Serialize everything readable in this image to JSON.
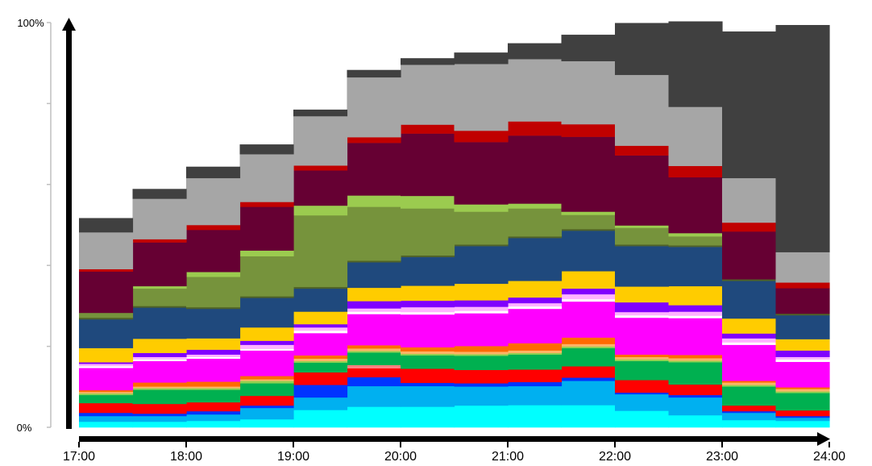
{
  "chart_data": {
    "type": "area",
    "stacked": true,
    "step": true,
    "x_start": "17:00",
    "x_end": "24:00",
    "x_ticks": [
      "17:00",
      "18:00",
      "19:00",
      "20:00",
      "21:00",
      "22:00",
      "23:00",
      "24:00"
    ],
    "y_ticks": [
      "0%",
      "100%"
    ],
    "ylim": [
      0,
      100
    ],
    "y_gridlines": false,
    "legend": "none",
    "intervals": [
      "17:00",
      "17:30",
      "18:00",
      "18:30",
      "19:00",
      "19:30",
      "20:00",
      "20:30",
      "21:00",
      "21:30",
      "22:00",
      "22:30",
      "23:00",
      "23:30"
    ],
    "series": [
      {
        "color": "#00FFFF",
        "values": [
          1.4,
          1.4,
          1.6,
          2.0,
          4.3,
          5.1,
          5.1,
          5.4,
          5.5,
          5.5,
          4.1,
          3.0,
          1.8,
          1.6
        ]
      },
      {
        "color": "#00B0F0",
        "values": [
          1.4,
          1.4,
          1.6,
          2.8,
          3.1,
          5.1,
          5.1,
          4.7,
          4.7,
          6.0,
          4.1,
          4.4,
          1.8,
          0.8
        ]
      },
      {
        "color": "#0033FF",
        "values": [
          0.8,
          0.6,
          0.8,
          0.6,
          3.1,
          2.2,
          0.8,
          0.8,
          1.0,
          0.8,
          0.4,
          0.6,
          0.4,
          0.4
        ]
      },
      {
        "color": "#FF0000",
        "values": [
          2.4,
          2.4,
          2.2,
          2.4,
          3.1,
          2.2,
          3.5,
          3.3,
          3.1,
          2.8,
          3.1,
          2.6,
          1.4,
          1.4
        ]
      },
      {
        "color": "#FF8080",
        "values": [
          0,
          0,
          0,
          0,
          0,
          0.8,
          0,
          0,
          0,
          0,
          0,
          0,
          0,
          0
        ]
      },
      {
        "color": "#00B050",
        "values": [
          2.0,
          3.5,
          3.1,
          3.1,
          2.4,
          3.1,
          3.3,
          3.5,
          3.7,
          4.5,
          4.7,
          5.5,
          4.7,
          4.3
        ]
      },
      {
        "color": "#92D050",
        "values": [
          0.4,
          0.4,
          0.4,
          0.6,
          0.4,
          0.4,
          0.4,
          0.4,
          0.4,
          0.4,
          0.4,
          0.4,
          0.4,
          0.4
        ]
      },
      {
        "color": "#FFB366",
        "values": [
          0.4,
          0.4,
          0.4,
          0.4,
          0.6,
          0.6,
          0.6,
          0.6,
          0.6,
          0.6,
          0.6,
          0.6,
          0.6,
          0.6
        ]
      },
      {
        "color": "#FF6A00",
        "values": [
          0.4,
          1.0,
          1.2,
          0.8,
          0.8,
          0.8,
          1.0,
          1.4,
          1.8,
          1.6,
          0.6,
          0.8,
          0.4,
          0.4
        ]
      },
      {
        "color": "#FF00FF",
        "values": [
          5.5,
          5.3,
          5.7,
          6.3,
          5.5,
          7.7,
          8.1,
          8.1,
          8.5,
          8.9,
          9.1,
          9.1,
          8.9,
          6.3
        ]
      },
      {
        "color": "#FFFFFF",
        "values": [
          0.4,
          0.4,
          0.4,
          0.4,
          0.6,
          0.6,
          0.6,
          0.6,
          0.6,
          0.6,
          0.6,
          0.6,
          0.6,
          0.6
        ]
      },
      {
        "color": "#FFB3FF",
        "values": [
          0.6,
          0.6,
          0.6,
          1.0,
          0.8,
          0.8,
          1.2,
          1.0,
          0.8,
          1.2,
          0.8,
          1.0,
          1.0,
          0.6
        ]
      },
      {
        "color": "#8000FF",
        "values": [
          0.4,
          1.0,
          1.2,
          1.0,
          0.8,
          1.8,
          1.6,
          1.6,
          1.4,
          1.4,
          2.4,
          1.6,
          1.2,
          1.6
        ]
      },
      {
        "color": "#FFCC00",
        "values": [
          3.5,
          3.5,
          2.8,
          3.3,
          3.1,
          3.3,
          3.7,
          4.1,
          4.1,
          4.3,
          3.9,
          4.7,
          3.7,
          2.8
        ]
      },
      {
        "color": "#1F497D",
        "values": [
          7.1,
          7.7,
          7.3,
          7.3,
          5.7,
          6.3,
          7.1,
          9.3,
          10.6,
          10.0,
          10.0,
          9.7,
          9.3,
          5.9
        ]
      },
      {
        "color": "#4F6228",
        "values": [
          0.4,
          0.4,
          0.4,
          0.4,
          0.4,
          0.4,
          0.4,
          0.4,
          0.4,
          0.4,
          0.4,
          0.4,
          0.4,
          0.4
        ]
      },
      {
        "color": "#76933C",
        "values": [
          1.2,
          4.3,
          7.5,
          9.9,
          17.7,
          13.3,
          11.6,
          8.1,
          6.9,
          3.5,
          4.1,
          2.2,
          0,
          0
        ]
      },
      {
        "color": "#9BCB4F",
        "values": [
          0,
          0.6,
          1.2,
          1.4,
          2.4,
          2.8,
          3.1,
          1.8,
          1.2,
          0.8,
          0.6,
          0.8,
          0,
          0
        ]
      },
      {
        "color": "#660033",
        "values": [
          10.2,
          10.8,
          10.4,
          10.8,
          8.7,
          13.0,
          15.4,
          15.4,
          16.8,
          18.5,
          17.3,
          13.8,
          11.8,
          6.3
        ]
      },
      {
        "color": "#C00000",
        "values": [
          0.6,
          0.8,
          1.2,
          1.2,
          1.2,
          1.4,
          2.2,
          2.8,
          3.5,
          3.1,
          2.4,
          2.8,
          2.2,
          1.4
        ]
      },
      {
        "color": "#A6A6A6",
        "values": [
          9.1,
          10.0,
          11.6,
          11.8,
          12.2,
          14.8,
          14.8,
          16.5,
          15.4,
          15.6,
          17.5,
          14.6,
          11.0,
          7.5
        ]
      },
      {
        "color": "#404040",
        "values": [
          3.5,
          2.4,
          2.8,
          2.4,
          1.6,
          1.8,
          1.6,
          2.8,
          3.9,
          6.5,
          12.8,
          21.1,
          36.2,
          56.1
        ]
      }
    ]
  }
}
